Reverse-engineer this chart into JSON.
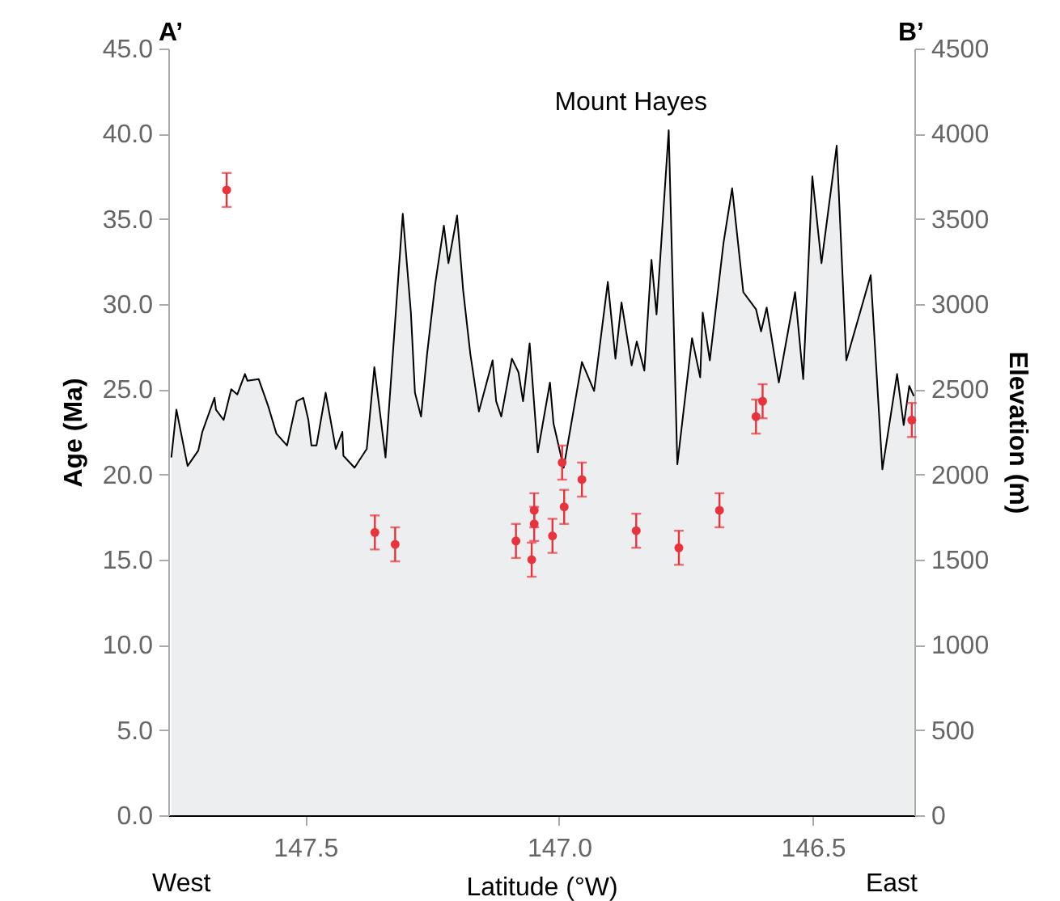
{
  "chart_data": {
    "type": "scatter",
    "xlabel": "Latitude (°W)",
    "ylabel": "Age (Ma)",
    "y2label": "Elevation (m)",
    "annotations": [
      "A’",
      "B’",
      "Mount Hayes",
      "West",
      "East"
    ],
    "xlim": [
      147.77,
      146.3
    ],
    "xticks": [
      {
        "value": 147.5,
        "label": "147.5"
      },
      {
        "value": 147,
        "label": "147.0"
      },
      {
        "value": 146.5,
        "label": "146.5"
      }
    ],
    "ylim": [
      0,
      45
    ],
    "yticks": [
      {
        "value": 0,
        "label": "0.0"
      },
      {
        "value": 5,
        "label": "5.0"
      },
      {
        "value": 10,
        "label": "10.0"
      },
      {
        "value": 15,
        "label": "15.0"
      },
      {
        "value": 20,
        "label": "20.0"
      },
      {
        "value": 25,
        "label": "25.0"
      },
      {
        "value": 30,
        "label": "30.0"
      },
      {
        "value": 35,
        "label": "35.0"
      },
      {
        "value": 40,
        "label": "40.0"
      },
      {
        "value": 45,
        "label": "45.0"
      }
    ],
    "y2lim": [
      0,
      4500
    ],
    "y2ticks": [
      0,
      500,
      1000,
      1500,
      2000,
      2500,
      3000,
      3500,
      4000,
      4500
    ],
    "grid": false,
    "series": [
      {
        "type": "area",
        "axis": "y2",
        "color": "#e6e7e8",
        "x": [
          147.764,
          147.754,
          147.732,
          147.711,
          147.703,
          147.679,
          147.676,
          147.661,
          147.646,
          147.634,
          147.619,
          147.614,
          147.592,
          147.573,
          147.557,
          147.536,
          147.517,
          147.504,
          147.494,
          147.488,
          147.478,
          147.46,
          147.44,
          147.427,
          147.425,
          147.403,
          147.379,
          147.364,
          147.342,
          147.308,
          147.292,
          147.284,
          147.272,
          147.26,
          147.244,
          147.227,
          147.218,
          147.201,
          147.189,
          147.175,
          147.158,
          147.131,
          147.124,
          147.114,
          147.093,
          147.08,
          147.071,
          147.058,
          147.042,
          147.018,
          147.011,
          146.991,
          146.955,
          146.931,
          146.904,
          146.889,
          146.877,
          146.857,
          146.847,
          146.832,
          146.818,
          146.808,
          146.784,
          146.767,
          146.738,
          146.722,
          146.717,
          146.703,
          146.676,
          146.659,
          146.637,
          146.612,
          146.602,
          146.591,
          146.567,
          146.535,
          146.519,
          146.501,
          146.483,
          146.453,
          146.434,
          146.386,
          146.363,
          146.334,
          146.321,
          146.31,
          146.301
        ],
        "values": [
          2100,
          2380,
          2050,
          2140,
          2250,
          2450,
          2380,
          2320,
          2500,
          2470,
          2590,
          2550,
          2560,
          2400,
          2240,
          2170,
          2430,
          2450,
          2320,
          2170,
          2170,
          2480,
          2150,
          2250,
          2110,
          2040,
          2150,
          2630,
          2100,
          3530,
          2950,
          2480,
          2340,
          2710,
          3120,
          3460,
          3240,
          3520,
          3080,
          2710,
          2370,
          2670,
          2430,
          2340,
          2680,
          2600,
          2430,
          2770,
          2130,
          2540,
          2300,
          2040,
          2660,
          2490,
          3130,
          2680,
          3010,
          2640,
          2780,
          2610,
          3260,
          2940,
          4020,
          2060,
          2800,
          2570,
          2950,
          2670,
          3360,
          3680,
          3070,
          2970,
          2840,
          2980,
          2540,
          3070,
          2560,
          3750,
          3240,
          3930,
          2670,
          3170,
          2030,
          2590,
          2290,
          2520,
          2460
        ]
      },
      {
        "color": "#e8333c",
        "marker": "circle",
        "x": [
          147.655,
          147.363,
          147.323,
          147.085,
          147.054,
          147.049,
          147.049,
          147.013,
          146.994,
          146.99,
          146.955,
          146.848,
          146.764,
          146.684,
          146.612,
          146.599,
          146.305
        ],
        "values": [
          36.7,
          16.6,
          15.9,
          16.1,
          15.0,
          17.1,
          17.9,
          16.4,
          20.7,
          18.1,
          19.7,
          16.7,
          15.7,
          17.9,
          23.4,
          24.3,
          23.2
        ],
        "errors": [
          1.0,
          1.0,
          1.0,
          1.0,
          1.0,
          1.0,
          1.0,
          1.0,
          1.0,
          1.0,
          1.0,
          1.0,
          1.0,
          1.0,
          1.0,
          1.0,
          1.0
        ]
      }
    ]
  }
}
